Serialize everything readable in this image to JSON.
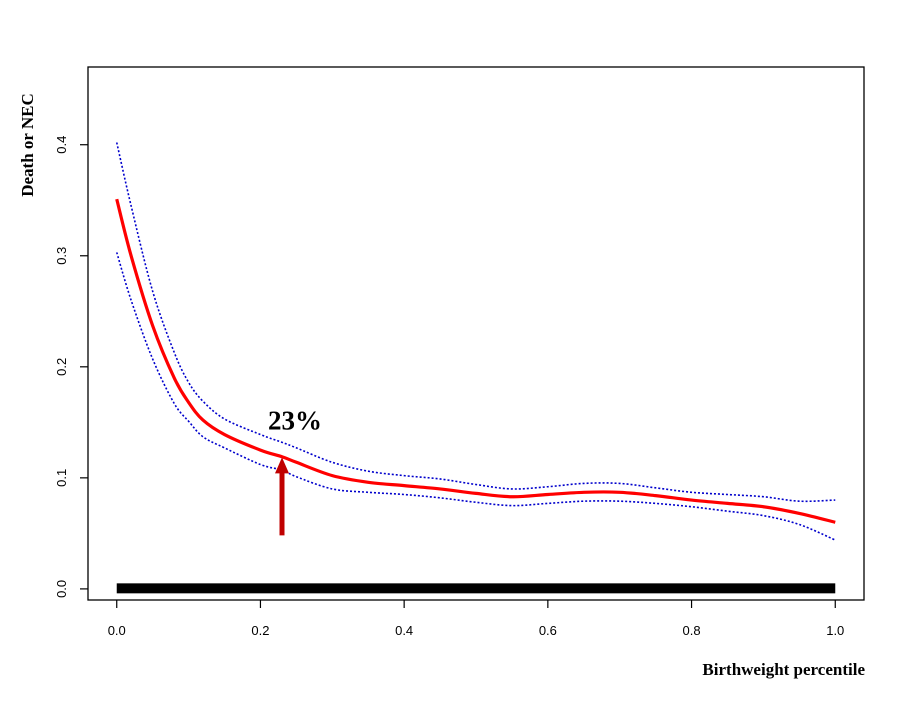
{
  "chart_data": {
    "type": "line",
    "title": "",
    "xlabel": "Birthweight percentile",
    "ylabel": "Death or NEC",
    "xlim": [
      -0.04,
      1.04
    ],
    "ylim": [
      -0.01,
      0.47
    ],
    "x_ticks": [
      "0.0",
      "0.2",
      "0.4",
      "0.6",
      "0.8",
      "1.0"
    ],
    "y_ticks": [
      "0.0",
      "0.1",
      "0.2",
      "0.3",
      "0.4"
    ],
    "grid": false,
    "legend": "none",
    "colors": {
      "estimate": "#ff0000",
      "ci": "#0000cc",
      "arrow": "#c00000",
      "rug": "#000000"
    },
    "x": [
      0.0,
      0.02,
      0.05,
      0.08,
      0.1,
      0.12,
      0.15,
      0.2,
      0.23,
      0.25,
      0.3,
      0.35,
      0.4,
      0.45,
      0.5,
      0.55,
      0.6,
      0.65,
      0.7,
      0.75,
      0.8,
      0.85,
      0.9,
      0.95,
      1.0
    ],
    "series": [
      {
        "values": [
          0.351,
          0.3,
          0.237,
          0.19,
          0.168,
          0.152,
          0.139,
          0.125,
          0.119,
          0.114,
          0.102,
          0.096,
          0.093,
          0.09,
          0.086,
          0.083,
          0.085,
          0.087,
          0.087,
          0.084,
          0.08,
          0.077,
          0.074,
          0.068,
          0.06
        ]
      },
      {
        "values": [
          0.402,
          0.345,
          0.268,
          0.213,
          0.186,
          0.169,
          0.153,
          0.139,
          0.132,
          0.127,
          0.114,
          0.106,
          0.102,
          0.099,
          0.094,
          0.09,
          0.092,
          0.095,
          0.095,
          0.091,
          0.087,
          0.085,
          0.083,
          0.079,
          0.08
        ]
      },
      {
        "values": [
          0.303,
          0.26,
          0.207,
          0.167,
          0.151,
          0.137,
          0.127,
          0.112,
          0.107,
          0.101,
          0.09,
          0.087,
          0.085,
          0.082,
          0.078,
          0.075,
          0.077,
          0.079,
          0.079,
          0.077,
          0.074,
          0.07,
          0.066,
          0.058,
          0.044
        ]
      }
    ],
    "rug_range": [
      0.0,
      1.0
    ],
    "annotation": {
      "text": "23%",
      "x": 0.23,
      "y": 0.122
    }
  }
}
